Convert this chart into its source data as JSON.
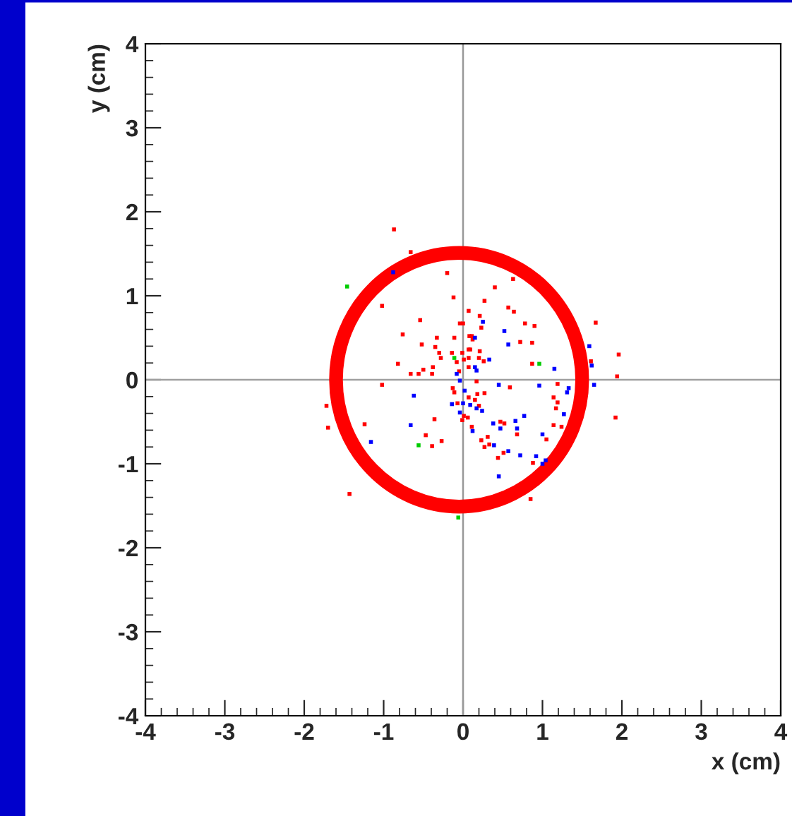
{
  "chart_data": {
    "type": "scatter",
    "xlabel": "x (cm)",
    "ylabel": "y (cm)",
    "xlim": [
      -4,
      4
    ],
    "ylim": [
      -4,
      4
    ],
    "xticks": [
      -4,
      -3,
      -2,
      -1,
      0,
      1,
      2,
      3,
      4
    ],
    "yticks": [
      -4,
      -3,
      -2,
      -1,
      0,
      1,
      2,
      3,
      4
    ],
    "marker": "square",
    "grid": false,
    "ref_lines": [
      {
        "axis": "x",
        "value": 0,
        "color": "#999999"
      },
      {
        "axis": "y",
        "value": 0,
        "color": "#a0a0a0"
      }
    ],
    "series": [
      {
        "color": "#ff0000",
        "x": [
          -0.87,
          -0.66,
          -0.2,
          -1.02,
          -0.12,
          -0.54,
          -0.76,
          -0.33,
          -0.11,
          -0.52,
          -0.35,
          -0.3,
          -0.14,
          -0.28,
          -0.82,
          -0.5,
          -0.38,
          -0.66,
          -0.56,
          -0.39,
          -0.04,
          0,
          0.07,
          0.08,
          0.09,
          -0.01,
          0.01,
          -0.08,
          0.07,
          -0.05,
          0.4,
          0.63,
          0.27,
          0.57,
          0.64,
          0.21,
          0.23,
          0.78,
          0.9,
          1.67,
          0.11,
          0.12,
          0.72,
          0.87,
          0.07,
          0.21,
          0.2,
          0.26,
          0.07,
          0.87,
          1.61,
          1.96,
          1.94,
          -1.02,
          -1.72,
          -1.7,
          -1.24,
          -0.36,
          -0.47,
          -0.27,
          -0.39,
          -1.43,
          -0.13,
          -0.11,
          0.07,
          0.15,
          -0.07,
          -0.01,
          0.06,
          0.11,
          0.01,
          0.17,
          0.59,
          0.27,
          0.18,
          0.2,
          0.47,
          0.52,
          0.68,
          0.31,
          0.23,
          0.27,
          0.33,
          0.51,
          0.44,
          1.05,
          1.14,
          1.17,
          1.14,
          1.19,
          1.19,
          1.24,
          0.88,
          0.85,
          1.92
        ],
        "values": [
          1.79,
          1.52,
          1.27,
          0.88,
          0.98,
          0.71,
          0.54,
          0.5,
          0.5,
          0.42,
          0.39,
          0.32,
          0.32,
          0.26,
          0.19,
          0.12,
          0.15,
          0.07,
          0.07,
          0.07,
          0.67,
          0.67,
          0.82,
          0.52,
          0.36,
          0.32,
          0.24,
          0.21,
          0.26,
          0.1,
          1.1,
          1.2,
          0.94,
          0.86,
          0.81,
          0.76,
          0.62,
          0.67,
          0.64,
          0.68,
          0.52,
          0.48,
          0.45,
          0.44,
          0.36,
          0.34,
          0.26,
          0.22,
          0.15,
          0.19,
          0.22,
          0.3,
          0.04,
          -0.06,
          -0.31,
          -0.57,
          -0.53,
          -0.47,
          -0.66,
          -0.73,
          -0.79,
          -1.36,
          -0.1,
          -0.15,
          -0.21,
          -0.24,
          -0.28,
          -0.48,
          -0.45,
          -0.56,
          -0.43,
          -0.02,
          -0.09,
          -0.16,
          -0.17,
          -0.31,
          -0.5,
          -0.52,
          -0.65,
          -0.68,
          -0.72,
          -0.8,
          -0.77,
          -0.87,
          -0.93,
          -0.71,
          -0.54,
          -0.34,
          -0.21,
          -0.27,
          -0.05,
          -0.56,
          -0.99,
          -1.42,
          -0.45
        ]
      },
      {
        "color": "#0000ff",
        "x": [
          -0.88,
          0.15,
          0.15,
          -0.08,
          0.25,
          0.52,
          0.57,
          0.33,
          0.17,
          1.15,
          1.59,
          1.62,
          -0.62,
          -0.66,
          -1.16,
          -0.04,
          0.02,
          -0.14,
          0,
          0.09,
          0.17,
          -0.04,
          0.12,
          0.45,
          0.96,
          1.33,
          1.31,
          1.65,
          0.24,
          0.38,
          0.47,
          0.66,
          0.68,
          0.77,
          1.0,
          1.27,
          0.57,
          0.72,
          0.92,
          1.0,
          1.04,
          0.45,
          0.39
        ],
        "values": [
          1.28,
          0.5,
          0.15,
          0.07,
          0.69,
          0.58,
          0.42,
          0.24,
          0.11,
          0.13,
          0.4,
          0.17,
          -0.19,
          -0.54,
          -0.74,
          -0.01,
          -0.13,
          -0.29,
          -0.28,
          -0.3,
          -0.34,
          -0.39,
          -0.61,
          -0.06,
          -0.07,
          -0.1,
          -0.15,
          -0.06,
          -0.37,
          -0.52,
          -0.58,
          -0.49,
          -0.58,
          -0.43,
          -0.65,
          -0.41,
          -0.85,
          -0.9,
          -0.91,
          -1.0,
          -0.96,
          -1.15,
          -0.78
        ]
      },
      {
        "color": "#00cc00",
        "x": [
          -1.46,
          -0.11,
          0.96,
          -0.56,
          -0.06
        ],
        "values": [
          1.11,
          0.26,
          0.19,
          -0.78,
          -1.64
        ]
      }
    ]
  }
}
